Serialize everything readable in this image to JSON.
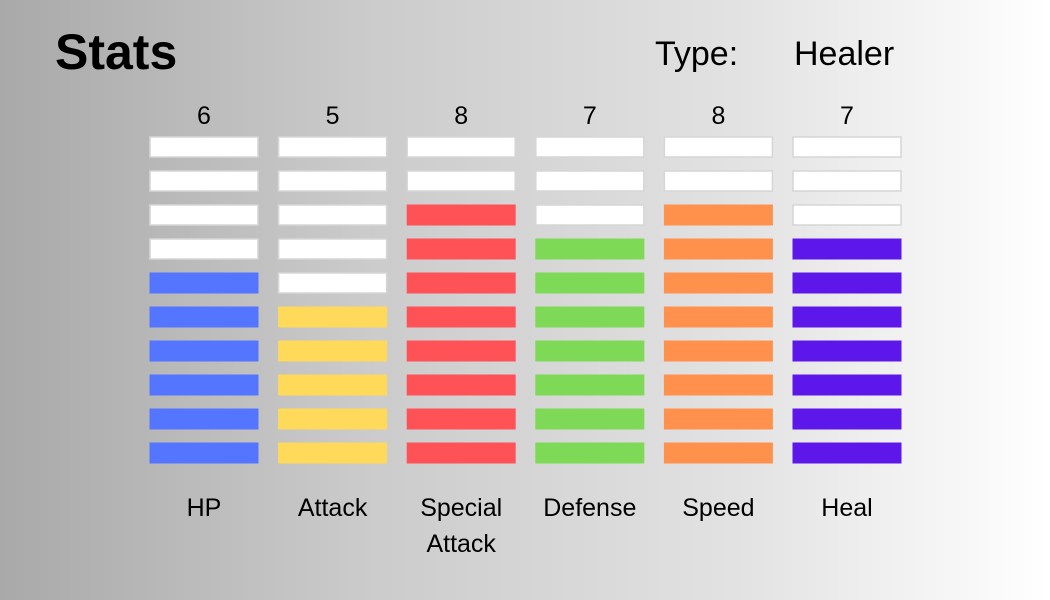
{
  "header": {
    "title": "Stats",
    "type_label": "Type:",
    "type_value": "Healer"
  },
  "chart_data": {
    "type": "bar",
    "title": "Stats",
    "xlabel": "",
    "ylabel": "",
    "ylim": [
      0,
      10
    ],
    "grid": false,
    "legend": "none",
    "categories": [
      "HP",
      "Attack",
      "Special Attack",
      "Defense",
      "Speed",
      "Heal"
    ],
    "category_lines": [
      [
        "HP"
      ],
      [
        "Attack"
      ],
      [
        "Special",
        "Attack"
      ],
      [
        "Defense"
      ],
      [
        "Speed"
      ],
      [
        "Heal"
      ]
    ],
    "values": [
      6,
      5,
      8,
      7,
      8,
      7
    ],
    "max_segments": 10,
    "colors": {
      "empty": "#ffffff",
      "empty_border": "#d6d6d6",
      "HP": "#5475ff",
      "Attack": "#ffd95a",
      "Special Attack": "#ff5257",
      "Defense": "#7ed957",
      "Speed": "#ff914d",
      "Heal": "#5e17eb"
    }
  }
}
